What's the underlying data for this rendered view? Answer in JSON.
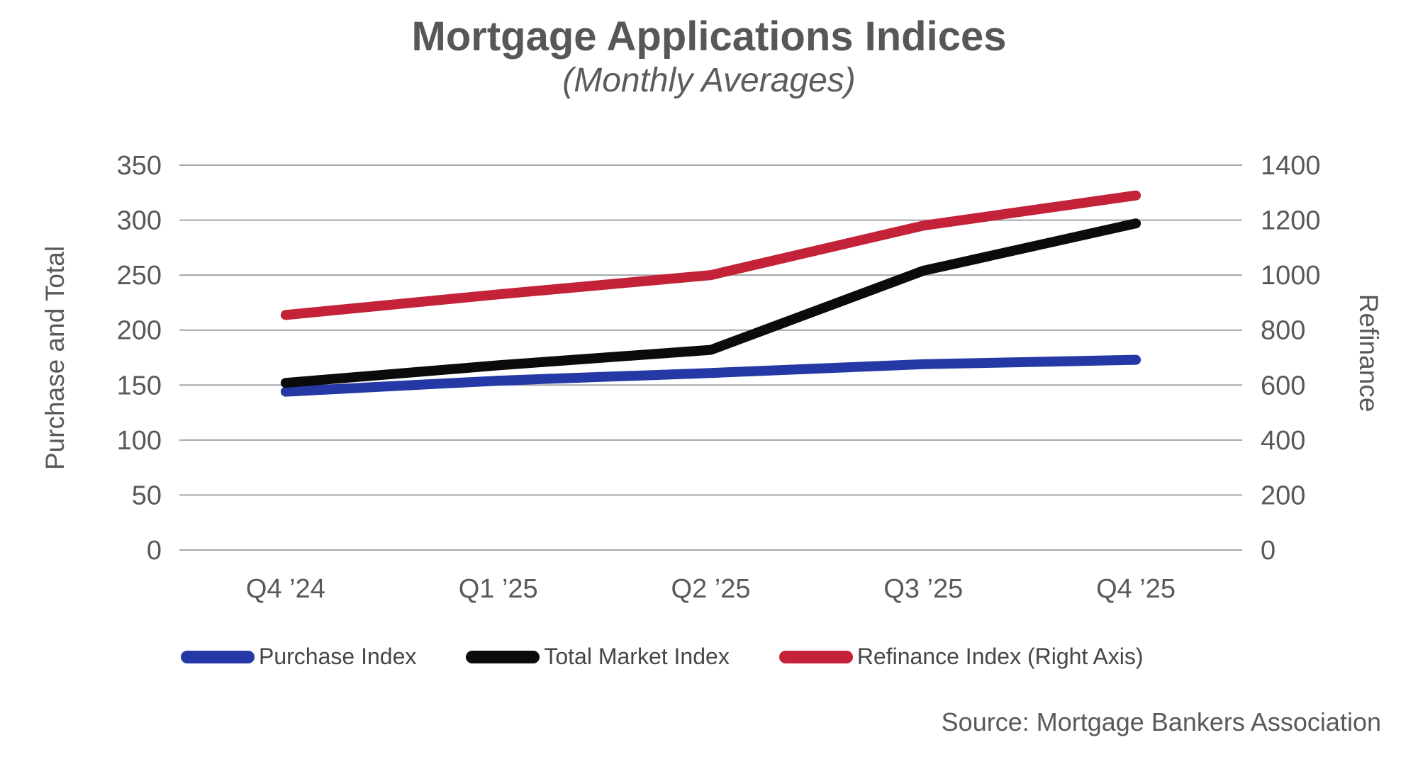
{
  "chart_data": {
    "type": "line",
    "title": "Mortgage Applications Indices",
    "subtitle": "(Monthly Averages)",
    "categories": [
      "Q4 ’24",
      "Q1 ’25",
      "Q2 ’25",
      "Q3 ’25",
      "Q4 ’25"
    ],
    "series": [
      {
        "name": "Purchase Index",
        "axis": "left",
        "color": "#2439A5",
        "values": [
          144,
          154,
          161,
          169,
          173
        ]
      },
      {
        "name": "Total Market Index",
        "axis": "left",
        "color": "#0B0B0B",
        "values": [
          152,
          168,
          182,
          254,
          297
        ]
      },
      {
        "name": "Refinance Index (Right Axis)",
        "axis": "right",
        "color": "#C42238",
        "values": [
          855,
          930,
          1000,
          1180,
          1290
        ]
      }
    ],
    "ylabel_left": "Purchase and Total",
    "ylabel_right": "Refinance",
    "ylim_left": [
      0,
      350
    ],
    "ylim_right": [
      0,
      1400
    ],
    "left_ticks": [
      350,
      300,
      250,
      200,
      150,
      100,
      50,
      0
    ],
    "right_ticks": [
      1400,
      1200,
      1000,
      800,
      600,
      400,
      200,
      0
    ],
    "grid": "horizontal-only",
    "legend_position": "bottom",
    "source": "Source: Mortgage Bankers Association"
  },
  "colors": {
    "background": "#FFFFFF",
    "grid": "#A3A5A8",
    "axis_text": "#58595B",
    "title_text": "#555759"
  }
}
